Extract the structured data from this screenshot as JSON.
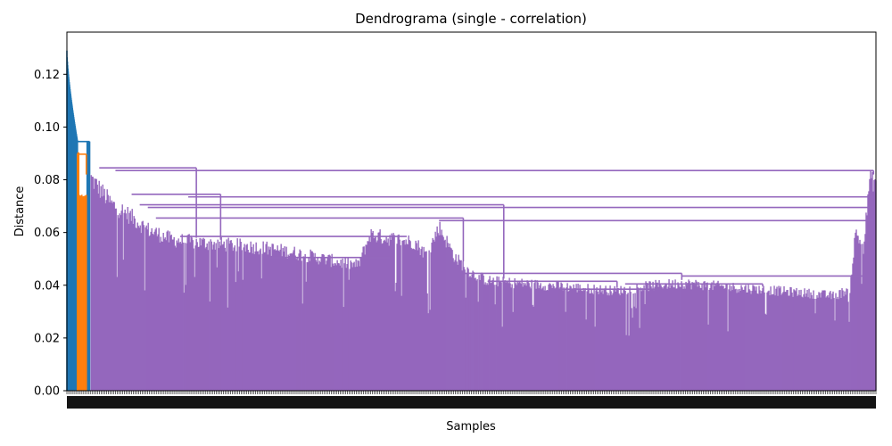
{
  "chart_data": {
    "type": "dendrogram",
    "title": "Dendrograma (single - correlation)",
    "xlabel": "Samples",
    "ylabel": "Distance",
    "ylim": [
      0,
      0.136
    ],
    "yticks": [
      0.0,
      0.02,
      0.04,
      0.06,
      0.08,
      0.1,
      0.12
    ],
    "ytick_labels": [
      "0.00",
      "0.02",
      "0.04",
      "0.06",
      "0.08",
      "0.10",
      "0.12"
    ],
    "leaf_labels": "dense, overlapping sample indices (illegible)",
    "grid": false,
    "colors": {
      "cluster_1": "#1f77b4",
      "cluster_2": "#ff7f0e",
      "cluster_3": "#9467bd",
      "axes": "#000000"
    },
    "clusters": [
      {
        "color_key": "cluster_1",
        "x_extent": [
          0.0,
          0.028
        ],
        "top_height": 0.129
      },
      {
        "color_key": "cluster_2",
        "x_extent": [
          0.013,
          0.024
        ],
        "top_height": 0.09
      },
      {
        "color_key": "cluster_3",
        "x_extent": [
          0.03,
          1.0
        ],
        "top_height": 0.084
      }
    ],
    "major_merges": [
      {
        "height": 0.0945,
        "x_from": 0.008,
        "x_to": 0.028,
        "color_key": "cluster_1"
      },
      {
        "height": 0.0897,
        "x_from": 0.014,
        "x_to": 0.024,
        "color_key": "cluster_2"
      },
      {
        "height": 0.0845,
        "x_from": 0.04,
        "x_to": 0.16,
        "color_key": "cluster_3"
      },
      {
        "height": 0.0835,
        "x_from": 0.06,
        "x_to": 0.997,
        "color_key": "cluster_3"
      },
      {
        "height": 0.0745,
        "x_from": 0.08,
        "x_to": 0.19,
        "color_key": "cluster_3"
      },
      {
        "height": 0.0735,
        "x_from": 0.15,
        "x_to": 0.997,
        "color_key": "cluster_3"
      },
      {
        "height": 0.0705,
        "x_from": 0.09,
        "x_to": 0.54,
        "color_key": "cluster_3"
      },
      {
        "height": 0.0695,
        "x_from": 0.1,
        "x_to": 0.997,
        "color_key": "cluster_3"
      },
      {
        "height": 0.0655,
        "x_from": 0.11,
        "x_to": 0.49,
        "color_key": "cluster_3"
      },
      {
        "height": 0.0645,
        "x_from": 0.46,
        "x_to": 0.997,
        "color_key": "cluster_3"
      },
      {
        "height": 0.0585,
        "x_from": 0.14,
        "x_to": 0.42,
        "color_key": "cluster_3"
      },
      {
        "height": 0.0505,
        "x_from": 0.25,
        "x_to": 0.4,
        "color_key": "cluster_3"
      },
      {
        "height": 0.0445,
        "x_from": 0.49,
        "x_to": 0.76,
        "color_key": "cluster_3"
      },
      {
        "height": 0.0435,
        "x_from": 0.76,
        "x_to": 0.985,
        "color_key": "cluster_3"
      },
      {
        "height": 0.0415,
        "x_from": 0.52,
        "x_to": 0.68,
        "color_key": "cluster_3"
      },
      {
        "height": 0.0405,
        "x_from": 0.69,
        "x_to": 0.86,
        "color_key": "cluster_3"
      },
      {
        "height": 0.0385,
        "x_from": 0.6,
        "x_to": 0.74,
        "color_key": "cluster_3"
      }
    ],
    "profile": [
      [
        0.03,
        0.083
      ],
      [
        0.04,
        0.079
      ],
      [
        0.055,
        0.073
      ],
      [
        0.075,
        0.069
      ],
      [
        0.1,
        0.063
      ],
      [
        0.13,
        0.059
      ],
      [
        0.16,
        0.058
      ],
      [
        0.2,
        0.057
      ],
      [
        0.24,
        0.056
      ],
      [
        0.28,
        0.054
      ],
      [
        0.31,
        0.052
      ],
      [
        0.34,
        0.05
      ],
      [
        0.36,
        0.049
      ],
      [
        0.375,
        0.061
      ],
      [
        0.39,
        0.06
      ],
      [
        0.41,
        0.059
      ],
      [
        0.43,
        0.058
      ],
      [
        0.445,
        0.053
      ],
      [
        0.46,
        0.064
      ],
      [
        0.48,
        0.052
      ],
      [
        0.5,
        0.046
      ],
      [
        0.52,
        0.043
      ],
      [
        0.56,
        0.042
      ],
      [
        0.6,
        0.041
      ],
      [
        0.64,
        0.04
      ],
      [
        0.68,
        0.039
      ],
      [
        0.72,
        0.041
      ],
      [
        0.76,
        0.042
      ],
      [
        0.8,
        0.041
      ],
      [
        0.84,
        0.04
      ],
      [
        0.88,
        0.039
      ],
      [
        0.92,
        0.038
      ],
      [
        0.95,
        0.037
      ],
      [
        0.968,
        0.04
      ],
      [
        0.975,
        0.062
      ],
      [
        0.985,
        0.056
      ],
      [
        0.992,
        0.082
      ],
      [
        1.0,
        0.082
      ]
    ]
  }
}
